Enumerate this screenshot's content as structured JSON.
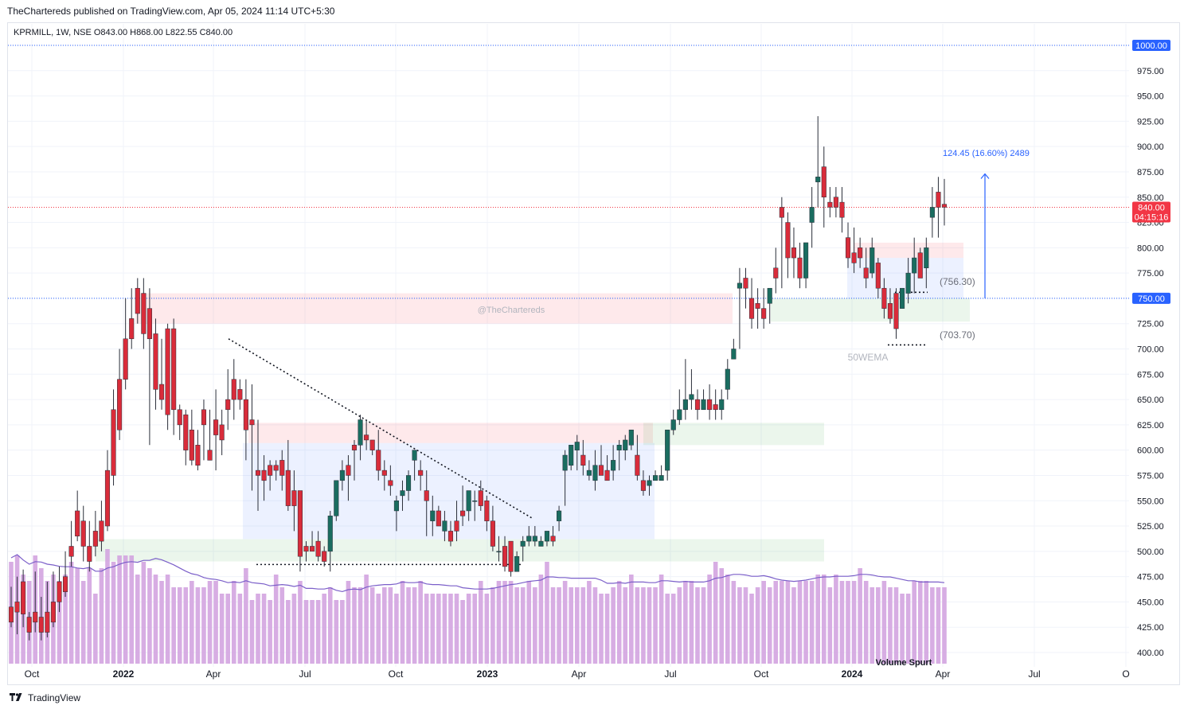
{
  "header": {
    "publisher": "TheChartereds published on TradingView.com, Apr 05, 2024 11:14 UTC+5:30",
    "symbol_line": "KPRMILL, 1W, NSE  O843.00  H868.00  L822.55  C840.00"
  },
  "footer": {
    "brand": "TradingView"
  },
  "colors": {
    "up": "#26a69a",
    "down": "#ef5350",
    "up_dark": "#1a6d60",
    "down_dark": "#d92c3a",
    "volume": "#d3a4e0",
    "ema": "#7b5fc9",
    "accent": "#2962ff",
    "price_tag": "#f23645"
  },
  "chart_data": {
    "type": "candlestick",
    "symbol": "KPRMILL",
    "timeframe": "1W",
    "exchange": "NSE",
    "ohlc": {
      "open": 843.0,
      "high": 868.0,
      "low": 822.55,
      "close": 840.0
    },
    "y_axis": {
      "ylim": [
        390,
        1010
      ],
      "ticks": [
        "400.00",
        "425.00",
        "450.00",
        "475.00",
        "500.00",
        "525.00",
        "550.00",
        "575.00",
        "600.00",
        "625.00",
        "650.00",
        "675.00",
        "700.00",
        "725.00",
        "750.00",
        "775.00",
        "800.00",
        "825.00",
        "850.00",
        "875.00",
        "900.00",
        "925.00",
        "950.00",
        "975.00",
        "1000.00"
      ]
    },
    "x_axis": {
      "labels": [
        "Oct",
        "2022",
        "Apr",
        "Jul",
        "Oct",
        "2023",
        "Apr",
        "Jul",
        "Oct",
        "2024",
        "Apr",
        "Jul",
        "O"
      ],
      "bold_labels": [
        "2022",
        "2023",
        "2024"
      ]
    },
    "price_tags": [
      {
        "value": 1000.0,
        "label": "1000.00",
        "color": "#2962ff"
      },
      {
        "value": 750.0,
        "label": "750.00",
        "color": "#2962ff"
      },
      {
        "value": 840.0,
        "label": "840.00",
        "sub": "04:15:16",
        "color": "#f23645"
      }
    ],
    "candles": [
      [
        445,
        465,
        430,
        425
      ],
      [
        450,
        475,
        440,
        418
      ],
      [
        470,
        482,
        438,
        425
      ],
      [
        435,
        440,
        420,
        412
      ],
      [
        440,
        480,
        430,
        420
      ],
      [
        435,
        455,
        420,
        412
      ],
      [
        440,
        470,
        420,
        415
      ],
      [
        450,
        480,
        430,
        425
      ],
      [
        470,
        485,
        450,
        440
      ],
      [
        475,
        500,
        460,
        455
      ],
      [
        505,
        530,
        495,
        485
      ],
      [
        540,
        560,
        515,
        510
      ],
      [
        530,
        545,
        505,
        490
      ],
      [
        505,
        530,
        490,
        480
      ],
      [
        520,
        540,
        505,
        495
      ],
      [
        530,
        550,
        510,
        500
      ],
      [
        580,
        600,
        525,
        520
      ],
      [
        640,
        660,
        575,
        565
      ],
      [
        670,
        700,
        620,
        610
      ],
      [
        710,
        750,
        670,
        660
      ],
      [
        730,
        760,
        710,
        700
      ],
      [
        760,
        770,
        735,
        725
      ],
      [
        755,
        770,
        715,
        700
      ],
      [
        740,
        760,
        710,
        605
      ],
      [
        715,
        730,
        660,
        640
      ],
      [
        665,
        710,
        650,
        640
      ],
      [
        720,
        725,
        635,
        620
      ],
      [
        720,
        730,
        640,
        615
      ],
      [
        640,
        645,
        625,
        610
      ],
      [
        635,
        640,
        600,
        585
      ],
      [
        620,
        640,
        590,
        585
      ],
      [
        605,
        620,
        585,
        580
      ],
      [
        640,
        650,
        625,
        590
      ],
      [
        600,
        640,
        590,
        590
      ],
      [
        630,
        660,
        615,
        580
      ],
      [
        625,
        640,
        610,
        595
      ],
      [
        650,
        680,
        640,
        620
      ],
      [
        670,
        690,
        650,
        630
      ],
      [
        660,
        670,
        650,
        640
      ],
      [
        650,
        670,
        620,
        590
      ],
      [
        630,
        665,
        625,
        560
      ],
      [
        580,
        630,
        575,
        540
      ],
      [
        580,
        595,
        570,
        550
      ],
      [
        585,
        590,
        575,
        560
      ],
      [
        585,
        590,
        580,
        570
      ],
      [
        590,
        600,
        575,
        560
      ],
      [
        580,
        610,
        545,
        540
      ],
      [
        560,
        580,
        545,
        520
      ],
      [
        560,
        550,
        495,
        480
      ],
      [
        505,
        510,
        500,
        490
      ],
      [
        505,
        520,
        500,
        500
      ],
      [
        510,
        520,
        495,
        490
      ],
      [
        500,
        505,
        490,
        485
      ],
      [
        500,
        540,
        535,
        480
      ],
      [
        535,
        545,
        570,
        530
      ],
      [
        570,
        590,
        580,
        560
      ],
      [
        585,
        595,
        575,
        550
      ],
      [
        605,
        610,
        600,
        570
      ],
      [
        605,
        635,
        630,
        590
      ],
      [
        615,
        630,
        610,
        600
      ],
      [
        610,
        610,
        600,
        595
      ],
      [
        600,
        620,
        580,
        570
      ],
      [
        580,
        590,
        575,
        560
      ],
      [
        570,
        585,
        565,
        555
      ],
      [
        540,
        555,
        550,
        520
      ],
      [
        555,
        570,
        560,
        540
      ],
      [
        560,
        580,
        575,
        550
      ],
      [
        590,
        600,
        600,
        570
      ],
      [
        580,
        590,
        575,
        560
      ],
      [
        560,
        580,
        550,
        515
      ],
      [
        530,
        555,
        540,
        515
      ],
      [
        540,
        545,
        525,
        525
      ],
      [
        520,
        540,
        530,
        510
      ],
      [
        520,
        530,
        510,
        505
      ],
      [
        530,
        550,
        520,
        510
      ],
      [
        540,
        565,
        535,
        525
      ],
      [
        540,
        560,
        560,
        530
      ],
      [
        550,
        560,
        550,
        530
      ],
      [
        560,
        570,
        545,
        540
      ],
      [
        550,
        555,
        530,
        520
      ],
      [
        530,
        545,
        505,
        500
      ],
      [
        500,
        515,
        500,
        490
      ],
      [
        505,
        515,
        485,
        480
      ],
      [
        510,
        510,
        480,
        475
      ],
      [
        480,
        500,
        495,
        480
      ],
      [
        505,
        515,
        510,
        490
      ],
      [
        510,
        525,
        515,
        505
      ],
      [
        510,
        525,
        515,
        505
      ],
      [
        505,
        515,
        510,
        505
      ],
      [
        510,
        520,
        520,
        505
      ],
      [
        515,
        525,
        510,
        505
      ],
      [
        530,
        545,
        540,
        520
      ],
      [
        580,
        600,
        595,
        545
      ],
      [
        585,
        600,
        605,
        580
      ],
      [
        600,
        615,
        608,
        580
      ],
      [
        595,
        610,
        585,
        575
      ],
      [
        575,
        590,
        580,
        570
      ],
      [
        570,
        600,
        585,
        560
      ],
      [
        585,
        605,
        575,
        575
      ],
      [
        580,
        595,
        570,
        575
      ],
      [
        580,
        605,
        590,
        570
      ],
      [
        600,
        610,
        605,
        580
      ],
      [
        600,
        615,
        610,
        590
      ],
      [
        605,
        620,
        620,
        600
      ],
      [
        595,
        615,
        575,
        570
      ],
      [
        570,
        580,
        560,
        555
      ],
      [
        565,
        575,
        570,
        555
      ],
      [
        570,
        580,
        575,
        570
      ],
      [
        570,
        585,
        575,
        570
      ],
      [
        580,
        620,
        620,
        570
      ],
      [
        620,
        640,
        630,
        615
      ],
      [
        630,
        660,
        640,
        625
      ],
      [
        640,
        690,
        650,
        630
      ],
      [
        650,
        680,
        655,
        640
      ],
      [
        650,
        660,
        640,
        630
      ],
      [
        640,
        660,
        650,
        640
      ],
      [
        650,
        665,
        640,
        630
      ],
      [
        645,
        660,
        640,
        630
      ],
      [
        640,
        660,
        650,
        630
      ],
      [
        660,
        690,
        680,
        650
      ],
      [
        690,
        710,
        700,
        690
      ],
      [
        760,
        780,
        765,
        700
      ],
      [
        770,
        780,
        760,
        740
      ],
      [
        750,
        770,
        730,
        720
      ],
      [
        745,
        760,
        740,
        720
      ],
      [
        740,
        760,
        730,
        720
      ],
      [
        745,
        760,
        760,
        725
      ],
      [
        780,
        800,
        770,
        755
      ],
      [
        840,
        850,
        830,
        760
      ],
      [
        825,
        835,
        790,
        770
      ],
      [
        800,
        820,
        790,
        770
      ],
      [
        790,
        805,
        770,
        760
      ],
      [
        770,
        790,
        805,
        760
      ],
      [
        825,
        860,
        840,
        800
      ],
      [
        865,
        930,
        870,
        840
      ],
      [
        880,
        900,
        850,
        820
      ],
      [
        845,
        860,
        840,
        830
      ],
      [
        850,
        860,
        840,
        830
      ],
      [
        845,
        860,
        830,
        815
      ],
      [
        810,
        825,
        790,
        780
      ],
      [
        795,
        820,
        785,
        775
      ],
      [
        800,
        810,
        790,
        780
      ],
      [
        780,
        800,
        770,
        760
      ],
      [
        775,
        810,
        800,
        770
      ],
      [
        785,
        790,
        760,
        750
      ],
      [
        760,
        770,
        740,
        730
      ],
      [
        745,
        760,
        730,
        725
      ],
      [
        755,
        760,
        720,
        710
      ],
      [
        740,
        760,
        760,
        740
      ],
      [
        755,
        790,
        775,
        745
      ],
      [
        775,
        810,
        790,
        755
      ],
      [
        795,
        800,
        770,
        770
      ],
      [
        780,
        810,
        800,
        760
      ],
      [
        830,
        860,
        840,
        810
      ],
      [
        855,
        870,
        840,
        810
      ],
      [
        843,
        868,
        840,
        822
      ]
    ],
    "volume_bars": [
      16,
      17,
      14,
      13,
      17,
      15,
      13,
      14,
      13,
      14,
      16,
      15,
      13,
      15,
      11,
      15,
      18,
      16,
      17,
      17,
      17,
      14,
      16,
      15,
      14,
      13,
      14,
      12,
      12,
      12,
      13,
      12,
      12,
      13,
      13,
      11,
      11,
      13,
      11,
      15,
      10,
      11,
      11,
      10,
      14,
      12,
      10,
      11,
      13,
      10,
      10,
      10,
      11,
      12,
      10,
      10,
      13,
      12,
      12,
      14,
      12,
      11,
      12,
      12,
      11,
      13,
      12,
      12,
      13,
      11,
      11,
      11,
      11,
      11,
      11,
      10,
      11,
      11,
      13,
      11,
      12,
      13,
      13,
      13,
      12,
      12,
      13,
      12,
      14,
      16,
      12,
      12,
      13,
      12,
      12,
      12,
      13,
      12,
      11,
      11,
      12,
      13,
      12,
      14,
      12,
      12,
      12,
      12,
      14,
      11,
      11,
      12,
      13,
      13,
      12,
      12,
      14,
      16,
      15,
      14,
      13,
      12,
      12,
      11,
      12,
      13,
      12,
      13,
      13,
      13,
      12,
      13,
      13,
      13,
      14,
      14,
      12,
      14,
      13,
      13,
      13,
      15,
      13,
      12,
      12,
      13,
      12,
      12,
      11,
      11,
      13,
      13,
      13,
      12,
      12,
      12
    ],
    "ema_label": "50WEMA",
    "annotations": [
      {
        "text": "124.45 (16.60%) 2489",
        "color": "#2962ff"
      },
      {
        "text": "(756.30)"
      },
      {
        "text": "(703.70)"
      },
      {
        "text": "@TheChartereds"
      },
      {
        "text": "50WEMA"
      },
      {
        "text": "Volume Spurt"
      }
    ],
    "zones": [
      {
        "kind": "supply",
        "from": 725,
        "to": 755
      },
      {
        "kind": "demand",
        "from": 490,
        "to": 512
      },
      {
        "kind": "range",
        "from": 512,
        "to": 607
      },
      {
        "kind": "supply",
        "from": 607,
        "to": 627
      },
      {
        "kind": "demand",
        "from": 605,
        "to": 627
      },
      {
        "kind": "range",
        "from": 750,
        "to": 790
      },
      {
        "kind": "supply",
        "from": 790,
        "to": 805
      },
      {
        "kind": "demand",
        "from": 727,
        "to": 750
      }
    ]
  }
}
